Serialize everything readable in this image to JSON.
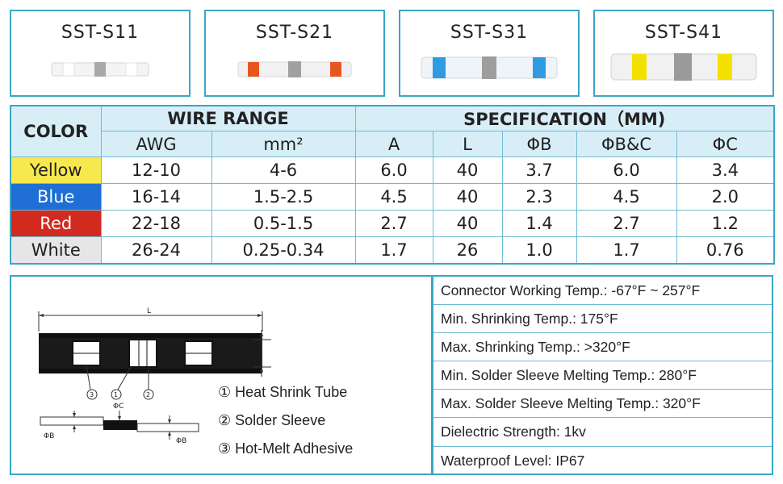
{
  "products": [
    {
      "name": "SST-S11",
      "band_color": "#f2f2f2"
    },
    {
      "name": "SST-S21",
      "band_color": "#e8561f"
    },
    {
      "name": "SST-S31",
      "band_color": "#2f9be3"
    },
    {
      "name": "SST-S41",
      "band_color": "#f3e200"
    }
  ],
  "table": {
    "color_header": "COLOR",
    "wire_range_header": "WIRE RANGE",
    "spec_header": "SPECIFICATION（MM)",
    "sub_headers": [
      "AWG",
      "mm²",
      "A",
      "L",
      "ΦB",
      "ΦB&C",
      "ΦC"
    ],
    "rows": [
      {
        "color": "Yellow",
        "awg": "12-10",
        "mm2": "4-6",
        "a": "6.0",
        "l": "40",
        "b": "3.7",
        "bc": "6.0",
        "c": "3.4"
      },
      {
        "color": "Blue",
        "awg": "16-14",
        "mm2": "1.5-2.5",
        "a": "4.5",
        "l": "40",
        "b": "2.3",
        "bc": "4.5",
        "c": "2.0"
      },
      {
        "color": "Red",
        "awg": "22-18",
        "mm2": "0.5-1.5",
        "a": "2.7",
        "l": "40",
        "b": "1.4",
        "bc": "2.7",
        "c": "1.2"
      },
      {
        "color": "White",
        "awg": "26-24",
        "mm2": "0.25-0.34",
        "a": "1.7",
        "l": "26",
        "b": "1.0",
        "bc": "1.7",
        "c": "0.76"
      }
    ]
  },
  "diagram": {
    "label_l": "L",
    "label_a": "A",
    "label_phi_c": "ΦC",
    "label_phi_b_left": "ΦB",
    "label_phi_b_right": "ΦB",
    "callout_1": "1",
    "callout_2": "2",
    "callout_3": "3",
    "legend": [
      "① Heat Shrink Tube",
      "② Solder Sleeve",
      "③ Hot-Melt Adhesive"
    ]
  },
  "specs": [
    "Connector Working Temp.: -67°F ~ 257°F",
    "Min. Shrinking Temp.:  175°F",
    "Max. Shrinking Temp.:  >320°F",
    "Min. Solder Sleeve Melting Temp.:  280°F",
    "Max. Solder Sleeve Melting Temp.:  320°F",
    "Dielectric Strength: 1kv",
    "Waterproof Level: IP67"
  ]
}
